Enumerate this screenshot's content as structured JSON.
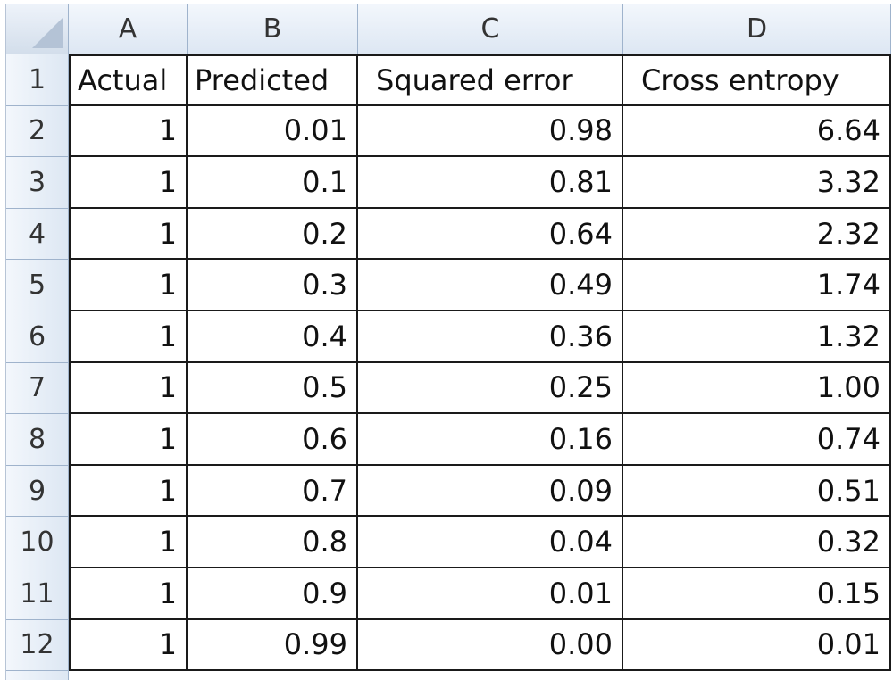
{
  "columns": [
    "A",
    "B",
    "C",
    "D"
  ],
  "header_row": {
    "row_number": "1",
    "cells": [
      "Actual",
      "Predicted",
      "Squared error",
      "Cross entropy"
    ]
  },
  "rows": [
    {
      "row_number": "2",
      "actual": "1",
      "predicted": "0.01",
      "squared_error": "0.98",
      "cross_entropy": "6.64"
    },
    {
      "row_number": "3",
      "actual": "1",
      "predicted": "0.1",
      "squared_error": "0.81",
      "cross_entropy": "3.32"
    },
    {
      "row_number": "4",
      "actual": "1",
      "predicted": "0.2",
      "squared_error": "0.64",
      "cross_entropy": "2.32"
    },
    {
      "row_number": "5",
      "actual": "1",
      "predicted": "0.3",
      "squared_error": "0.49",
      "cross_entropy": "1.74"
    },
    {
      "row_number": "6",
      "actual": "1",
      "predicted": "0.4",
      "squared_error": "0.36",
      "cross_entropy": "1.32"
    },
    {
      "row_number": "7",
      "actual": "1",
      "predicted": "0.5",
      "squared_error": "0.25",
      "cross_entropy": "1.00"
    },
    {
      "row_number": "8",
      "actual": "1",
      "predicted": "0.6",
      "squared_error": "0.16",
      "cross_entropy": "0.74"
    },
    {
      "row_number": "9",
      "actual": "1",
      "predicted": "0.7",
      "squared_error": "0.09",
      "cross_entropy": "0.51"
    },
    {
      "row_number": "10",
      "actual": "1",
      "predicted": "0.8",
      "squared_error": "0.04",
      "cross_entropy": "0.32"
    },
    {
      "row_number": "11",
      "actual": "1",
      "predicted": "0.9",
      "squared_error": "0.01",
      "cross_entropy": "0.15"
    },
    {
      "row_number": "12",
      "actual": "1",
      "predicted": "0.99",
      "squared_error": "0.00",
      "cross_entropy": "0.01"
    }
  ],
  "colors": {
    "header_fill": "#dde7f3",
    "header_border": "#9fb3cc",
    "grid_border": "#1a1a1a"
  }
}
